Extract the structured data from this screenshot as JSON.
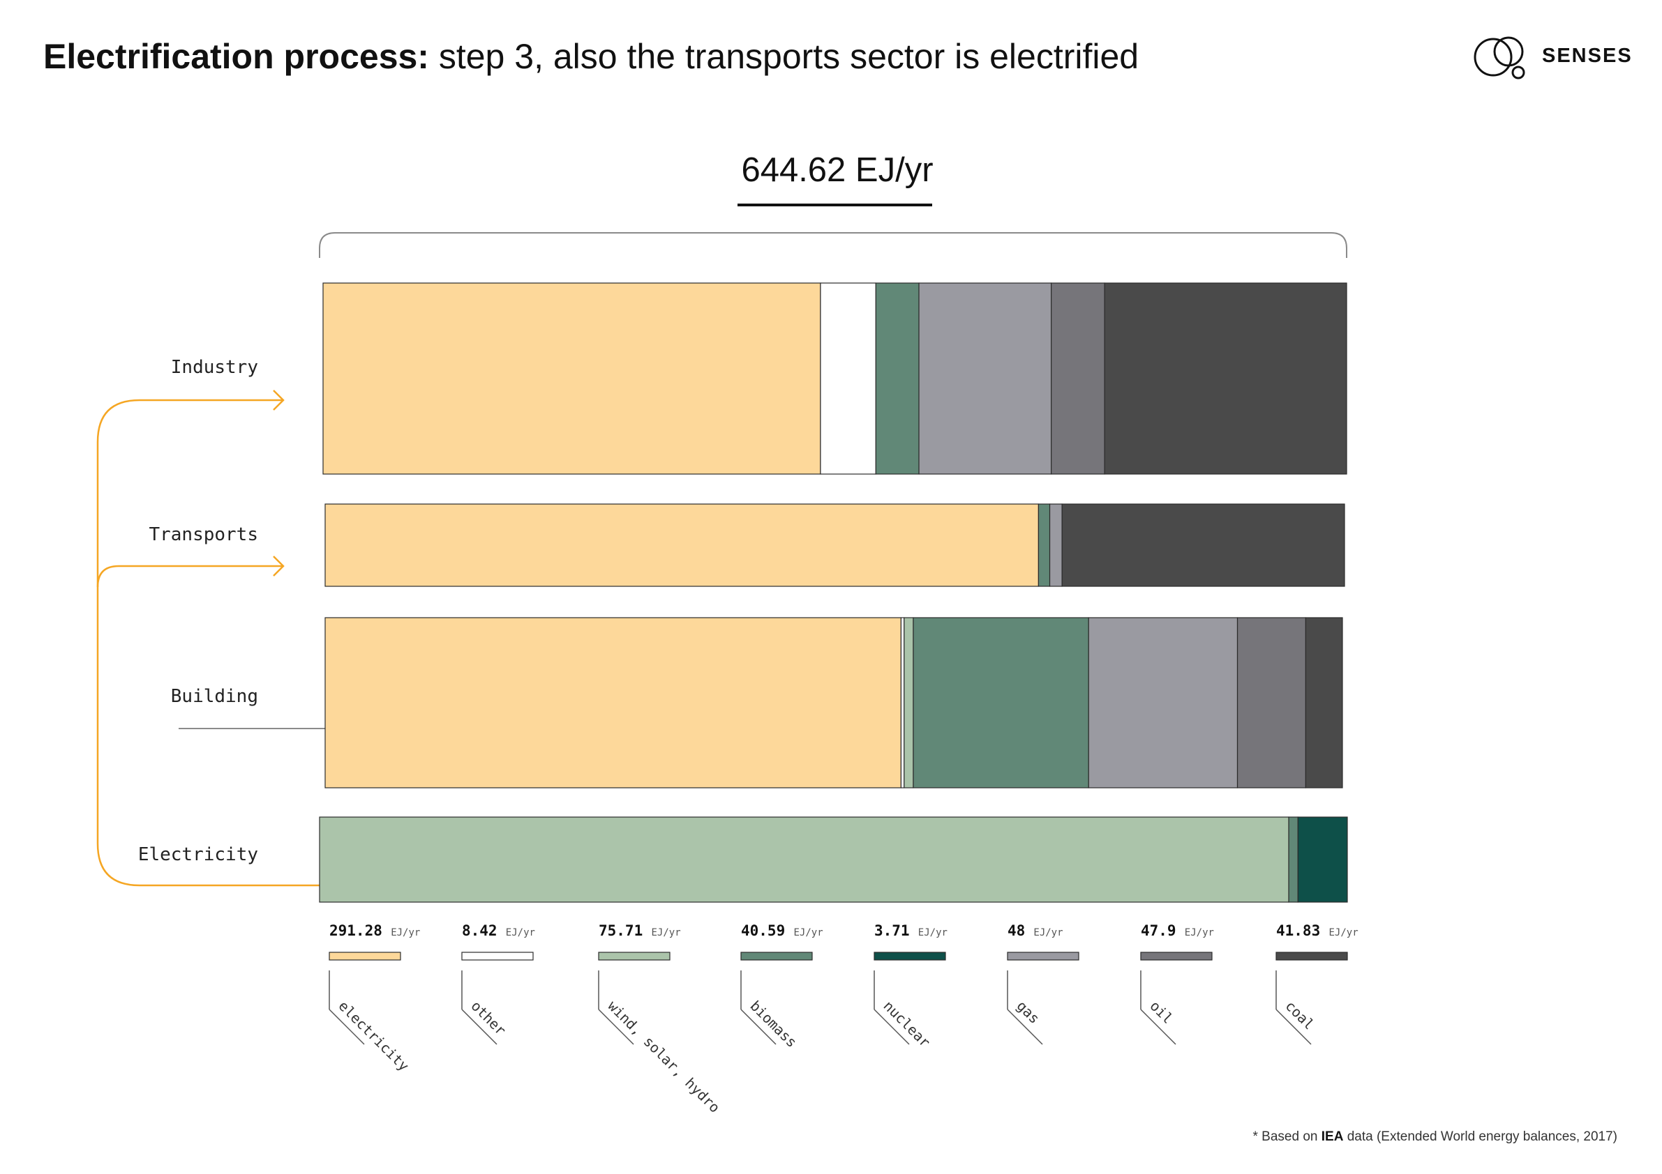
{
  "header": {
    "title_bold": "Electrification process:",
    "title_rest": " step 3, also the transports sector is electrified",
    "logo_text": "SENSES"
  },
  "total_label": "644.62 EJ/yr",
  "footnote": {
    "prefix": "* Based on ",
    "source": "IEA",
    "suffix": " data (Extended World energy balances, 2017)"
  },
  "colors": {
    "electricity": "#fdd89a",
    "other": "#ffffff",
    "wind_solar_hydro": "#abc4aa",
    "biomass": "#618877",
    "nuclear": "#0e5049",
    "gas": "#9a9aa1",
    "oil": "#76757a",
    "coal": "#4a4a4a",
    "arrow": "#f5a623"
  },
  "chart_data": {
    "type": "bar",
    "orientation": "horizontal",
    "stacked": true,
    "unit": "EJ/yr",
    "total": 644.62,
    "categories": [
      "Industry",
      "Transports",
      "Building",
      "Electricity"
    ],
    "series": [
      {
        "name": "electricity",
        "values": [
          48.5,
          69.7,
          56.5,
          0
        ]
      },
      {
        "name": "other",
        "values": [
          5.4,
          0,
          0.3,
          0
        ]
      },
      {
        "name": "wind, solar, hydro",
        "values": [
          0,
          0,
          0.9,
          94.3
        ]
      },
      {
        "name": "biomass",
        "values": [
          4.2,
          1.1,
          17.2,
          0.9
        ]
      },
      {
        "name": "nuclear",
        "values": [
          0,
          0,
          0,
          4.8
        ]
      },
      {
        "name": "gas",
        "values": [
          12.9,
          1.2,
          14.6,
          0
        ]
      },
      {
        "name": "oil",
        "values": [
          5.2,
          0,
          6.7,
          0
        ]
      },
      {
        "name": "coal",
        "values": [
          23.6,
          27.6,
          3.6,
          0
        ]
      }
    ],
    "legend": [
      {
        "key": "electricity",
        "value": "291.28",
        "unit": "EJ/yr",
        "label": "electricity"
      },
      {
        "key": "other",
        "value": "8.42",
        "unit": "EJ/yr",
        "label": "other"
      },
      {
        "key": "wind_solar_hydro",
        "value": "75.71",
        "unit": "EJ/yr",
        "label": "wind, solar, hydro"
      },
      {
        "key": "biomass",
        "value": "40.59",
        "unit": "EJ/yr",
        "label": "biomass"
      },
      {
        "key": "nuclear",
        "value": "3.71",
        "unit": "EJ/yr",
        "label": "nuclear"
      },
      {
        "key": "gas",
        "value": "48",
        "unit": "EJ/yr",
        "label": "gas"
      },
      {
        "key": "oil",
        "value": "47.9",
        "unit": "EJ/yr",
        "label": "oil"
      },
      {
        "key": "coal",
        "value": "41.83",
        "unit": "EJ/yr",
        "label": "coal"
      }
    ],
    "legend_placement": "bottom",
    "grid": false
  }
}
